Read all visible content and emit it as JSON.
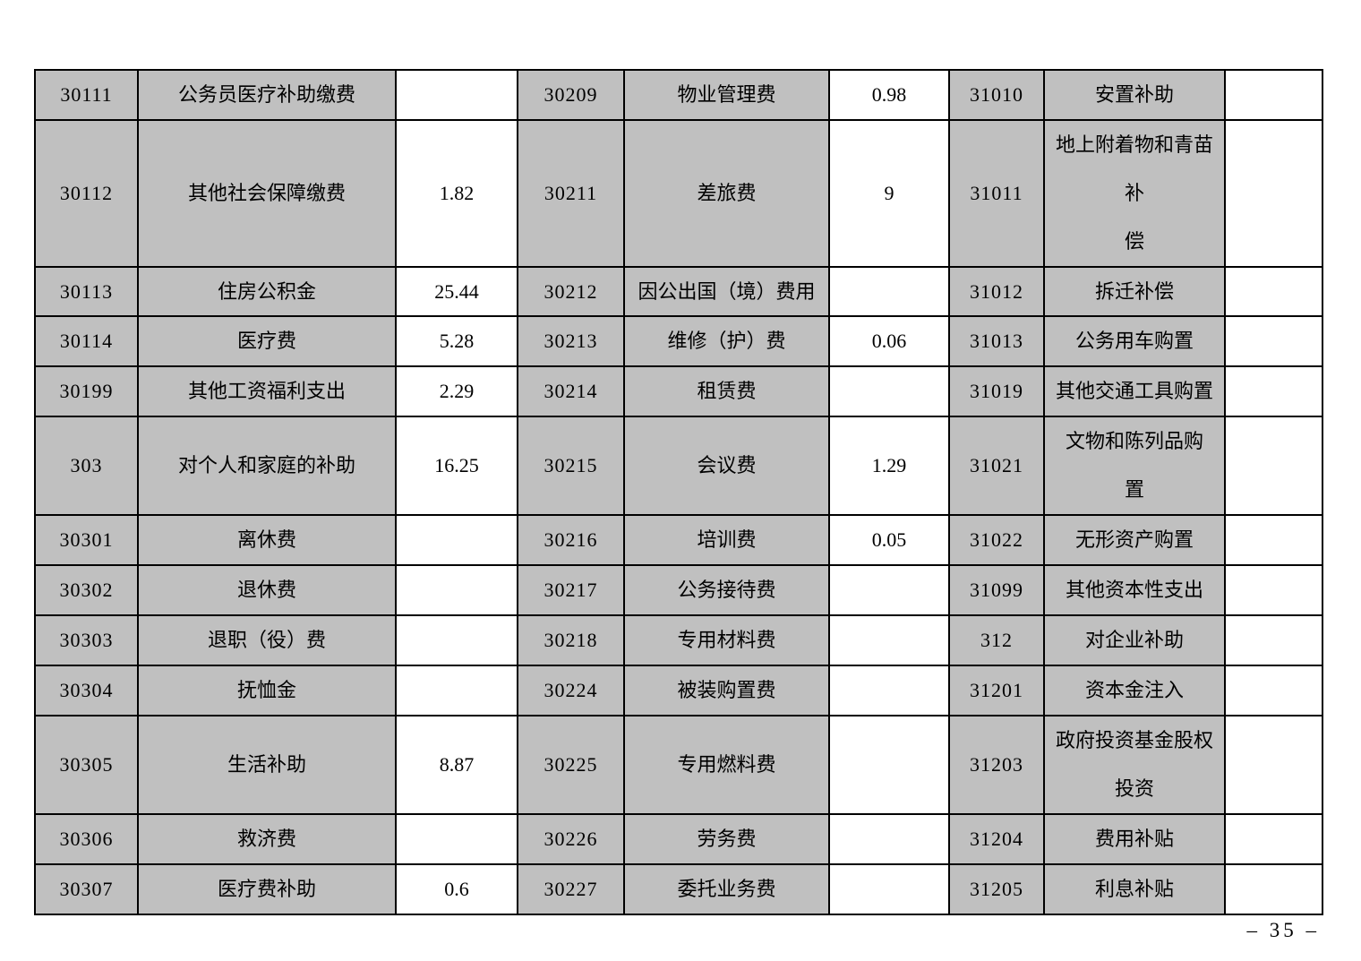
{
  "page": {
    "number_label": "– 35 –"
  },
  "colors": {
    "cell_gray": "#c0c0c0",
    "border": "#000000",
    "background": "#ffffff"
  },
  "table": {
    "description": "Budget economic classification table: three repeated column groups of code, item name, amount",
    "column_kinds": [
      "code",
      "name",
      "amount",
      "code",
      "name",
      "amount",
      "code",
      "name",
      "amount"
    ],
    "rows": [
      [
        "30111",
        "公务员医疗补助缴费",
        "",
        "30209",
        "物业管理费",
        "0.98",
        "31010",
        "安置补助",
        ""
      ],
      [
        "30112",
        "其他社会保障缴费",
        "1.82",
        "30211",
        "差旅费",
        "9",
        "31011",
        "地上附着物和青苗补\n偿",
        ""
      ],
      [
        "30113",
        "住房公积金",
        "25.44",
        "30212",
        "因公出国（境）费用",
        "",
        "31012",
        "拆迁补偿",
        ""
      ],
      [
        "30114",
        "医疗费",
        "5.28",
        "30213",
        "维修（护）费",
        "0.06",
        "31013",
        "公务用车购置",
        ""
      ],
      [
        "30199",
        "其他工资福利支出",
        "2.29",
        "30214",
        "租赁费",
        "",
        "31019",
        "其他交通工具购置",
        ""
      ],
      [
        "303",
        "对个人和家庭的补助",
        "16.25",
        "30215",
        "会议费",
        "1.29",
        "31021",
        "文物和陈列品购\n置",
        ""
      ],
      [
        "30301",
        "离休费",
        "",
        "30216",
        "培训费",
        "0.05",
        "31022",
        "无形资产购置",
        ""
      ],
      [
        "30302",
        "退休费",
        "",
        "30217",
        "公务接待费",
        "",
        "31099",
        "其他资本性支出",
        ""
      ],
      [
        "30303",
        "退职（役）费",
        "",
        "30218",
        "专用材料费",
        "",
        "312",
        "对企业补助",
        ""
      ],
      [
        "30304",
        "抚恤金",
        "",
        "30224",
        "被装购置费",
        "",
        "31201",
        "资本金注入",
        ""
      ],
      [
        "30305",
        "生活补助",
        "8.87",
        "30225",
        "专用燃料费",
        "",
        "31203",
        "政府投资基金股权\n投资",
        ""
      ],
      [
        "30306",
        "救济费",
        "",
        "30226",
        "劳务费",
        "",
        "31204",
        "费用补贴",
        ""
      ],
      [
        "30307",
        "医疗费补助",
        "0.6",
        "30227",
        "委托业务费",
        "",
        "31205",
        "利息补贴",
        ""
      ]
    ]
  }
}
